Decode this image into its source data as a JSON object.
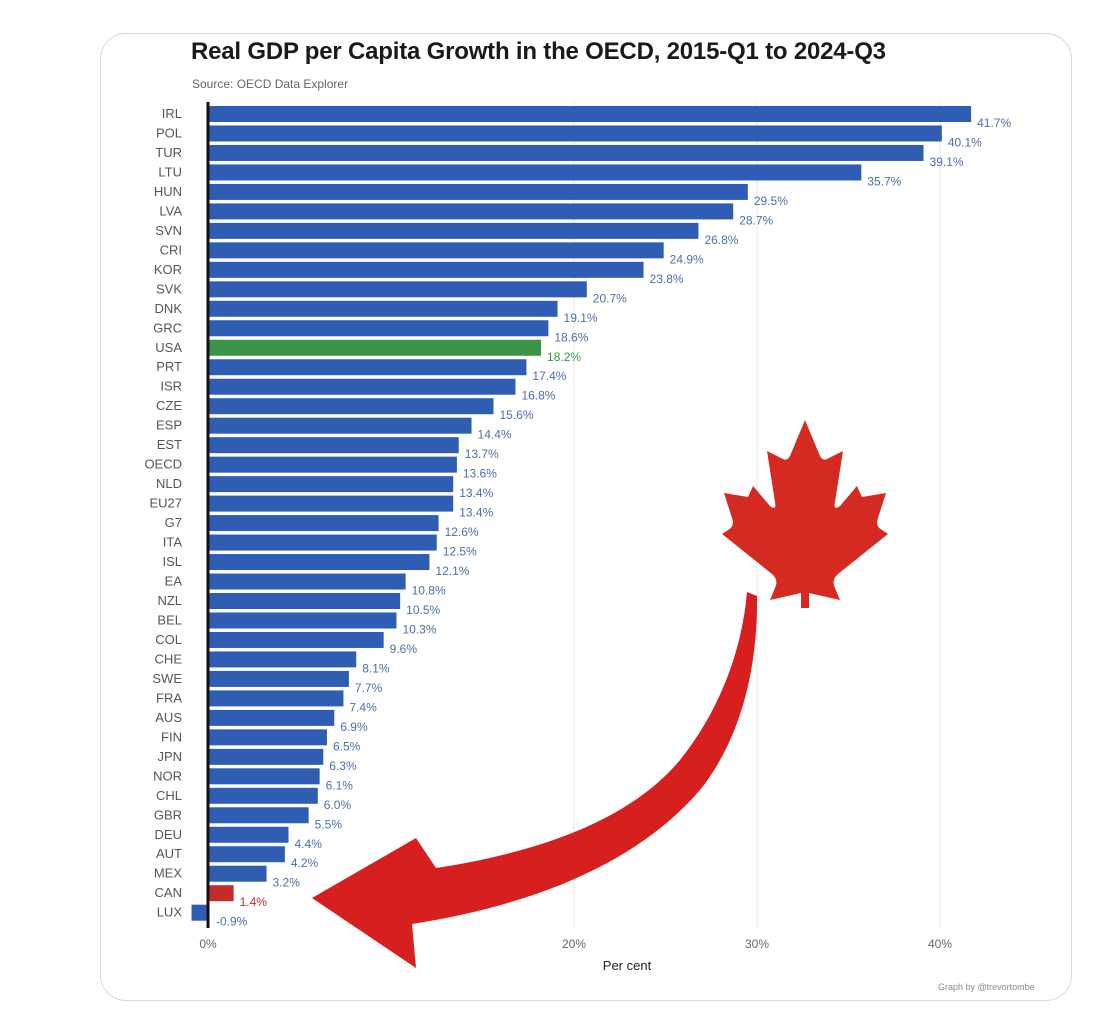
{
  "chart_data": {
    "type": "bar",
    "orientation": "horizontal",
    "title": "Real GDP per Capita Growth in the OECD, 2015-Q1 to 2024-Q3",
    "subtitle": "Source: OECD Data Explorer",
    "xlabel": "Per cent",
    "ylabel": "",
    "xlim": [
      0,
      45
    ],
    "xticks": [
      0,
      20,
      30,
      40
    ],
    "xtick_labels": [
      "0%",
      "20%",
      "30%",
      "40%"
    ],
    "grid": true,
    "credit": "Graph by @trevortombe",
    "categories": [
      "IRL",
      "POL",
      "TUR",
      "LTU",
      "HUN",
      "LVA",
      "SVN",
      "CRI",
      "KOR",
      "SVK",
      "DNK",
      "GRC",
      "USA",
      "PRT",
      "ISR",
      "CZE",
      "ESP",
      "EST",
      "OECD",
      "NLD",
      "EU27",
      "G7",
      "ITA",
      "ISL",
      "EA",
      "NZL",
      "BEL",
      "COL",
      "CHE",
      "SWE",
      "FRA",
      "AUS",
      "FIN",
      "JPN",
      "NOR",
      "CHL",
      "GBR",
      "DEU",
      "AUT",
      "MEX",
      "CAN",
      "LUX"
    ],
    "values": [
      41.7,
      40.1,
      39.1,
      35.7,
      29.5,
      28.7,
      26.8,
      24.9,
      23.8,
      20.7,
      19.1,
      18.6,
      18.2,
      17.4,
      16.8,
      15.6,
      14.4,
      13.7,
      13.6,
      13.4,
      13.4,
      12.6,
      12.5,
      12.1,
      10.8,
      10.5,
      10.3,
      9.6,
      8.1,
      7.7,
      7.4,
      6.9,
      6.5,
      6.3,
      6.1,
      6.0,
      5.5,
      4.4,
      4.2,
      3.2,
      1.4,
      -0.9
    ],
    "value_labels": [
      "41.7%",
      "40.1%",
      "39.1%",
      "35.7%",
      "29.5%",
      "28.7%",
      "26.8%",
      "24.9%",
      "23.8%",
      "20.7%",
      "19.1%",
      "18.6%",
      "18.2%",
      "17.4%",
      "16.8%",
      "15.6%",
      "14.4%",
      "13.7%",
      "13.6%",
      "13.4%",
      "13.4%",
      "12.6%",
      "12.5%",
      "12.1%",
      "10.8%",
      "10.5%",
      "10.3%",
      "9.6%",
      "8.1%",
      "7.7%",
      "7.4%",
      "6.9%",
      "6.5%",
      "6.3%",
      "6.1%",
      "6.0%",
      "5.5%",
      "4.4%",
      "4.2%",
      "3.2%",
      "1.4%",
      "-0.9%"
    ],
    "highlight": {
      "USA": "green",
      "CAN": "red"
    }
  },
  "colors": {
    "bar": "#2f5db3",
    "bar_usa": "#3b9446",
    "bar_can": "#c42b2b",
    "label": "#4a6fa8",
    "label_usa": "#3b9446",
    "label_can": "#c42b2b",
    "maple_leaf": "#d42a22",
    "arrow": "#d81f1f",
    "grid": "#e6e6e6",
    "axis": "#111111"
  },
  "annotation": {
    "maple_leaf_icon": "maple-leaf-icon",
    "arrow_icon": "curved-arrow-icon"
  }
}
